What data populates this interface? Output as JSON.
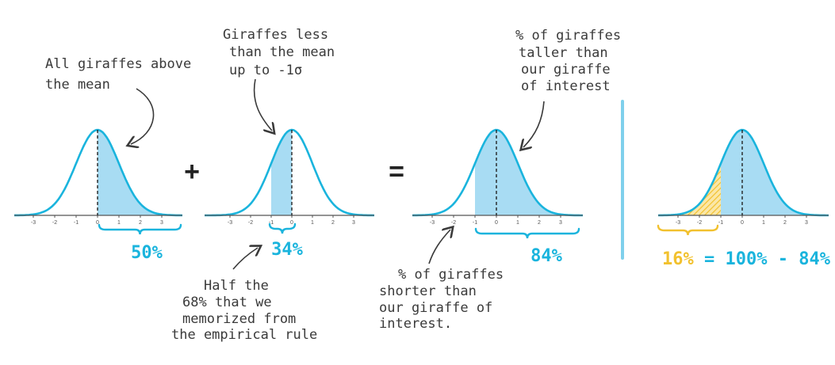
{
  "colors": {
    "curve": "#1ab4dd",
    "fill": "#a8dcf3",
    "yellow": "#f2c12e",
    "pen": "#3a3a3a"
  },
  "tick_labels": [
    "-3",
    "-2",
    "-1",
    "0",
    "1",
    "2",
    "3"
  ],
  "operators": {
    "plus": "+",
    "equals": "="
  },
  "panels": [
    {
      "shade_from": 0,
      "shade_to": 3,
      "percent": "50%"
    },
    {
      "shade_from": -1,
      "shade_to": 0,
      "percent": "34%"
    },
    {
      "shade_from": -1,
      "shade_to": 3,
      "percent": "84%"
    },
    {
      "shade_from": -1,
      "shade_to": 3,
      "hatch_from": -3,
      "hatch_to": -1,
      "percent": "16%"
    }
  ],
  "annotations": {
    "above_mean": [
      "All giraffes above",
      "the mean"
    ],
    "less_than_mean": [
      "Giraffes less",
      "than the mean",
      "up to -1σ"
    ],
    "taller": [
      "% of giraffes",
      "taller than",
      "our giraffe",
      "of interest"
    ],
    "half": [
      "Half the",
      "68% that we",
      "memorized from",
      "the empirical rule"
    ],
    "shorter": [
      "% of giraffes",
      "shorter than",
      "our giraffe of",
      "interest."
    ]
  },
  "equation": {
    "yellow_part": "16%",
    "rest": " = 100% - 84%"
  }
}
